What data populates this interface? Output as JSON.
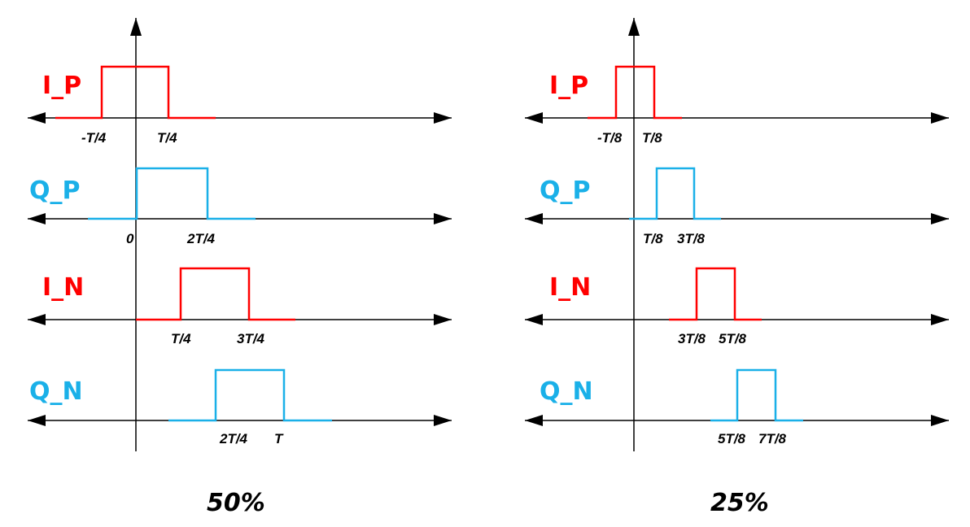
{
  "colors": {
    "red": "#ff0000",
    "blue": "#1ab0e8",
    "axis": "#000000"
  },
  "panels": [
    {
      "caption": "50%",
      "rows": [
        {
          "label": "I_P",
          "color": "red",
          "tick_labels": [
            "-T/4",
            "T/4"
          ]
        },
        {
          "label": "Q_P",
          "color": "blue",
          "tick_labels": [
            "0",
            "2T/4"
          ]
        },
        {
          "label": "I_N",
          "color": "red",
          "tick_labels": [
            "T/4",
            "3T/4"
          ]
        },
        {
          "label": "Q_N",
          "color": "blue",
          "tick_labels": [
            "2T/4",
            "T"
          ]
        }
      ]
    },
    {
      "caption": "25%",
      "rows": [
        {
          "label": "I_P",
          "color": "red",
          "tick_labels": [
            "-T/8",
            "T/8"
          ]
        },
        {
          "label": "Q_P",
          "color": "blue",
          "tick_labels": [
            "T/8",
            "3T/8"
          ]
        },
        {
          "label": "I_N",
          "color": "red",
          "tick_labels": [
            "3T/8",
            "5T/8"
          ]
        },
        {
          "label": "Q_N",
          "color": "blue",
          "tick_labels": [
            "5T/8",
            "7T/8"
          ]
        }
      ]
    }
  ]
}
